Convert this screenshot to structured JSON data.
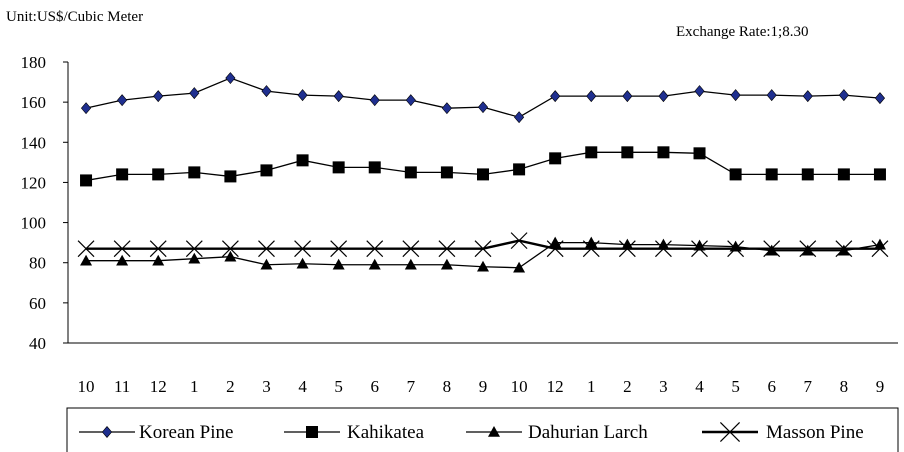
{
  "unit_label": "Unit:US$/Cubic Meter",
  "exchange_rate_label": "Exchange Rate:1;8.30",
  "chart_data": {
    "type": "line",
    "categories": [
      "10",
      "11",
      "12",
      "1",
      "2",
      "3",
      "4",
      "5",
      "6",
      "7",
      "8",
      "9",
      "10",
      "12",
      "1",
      "2",
      "3",
      "4",
      "5",
      "6",
      "7",
      "8",
      "9"
    ],
    "ylim": [
      40,
      180
    ],
    "yticks": [
      40,
      60,
      80,
      100,
      120,
      140,
      160,
      180
    ],
    "grid": false,
    "legend": "bottom",
    "series": [
      {
        "name": "Korean Pine",
        "marker": "diamond",
        "color": "#1f2f8f",
        "values": [
          157,
          161,
          163,
          164.5,
          172,
          165.5,
          163.5,
          163,
          161,
          161,
          157,
          157.5,
          152.5,
          163,
          163,
          163,
          163,
          165.5,
          163.5,
          163.5,
          163,
          163.5,
          162
        ]
      },
      {
        "name": "Kahikatea",
        "marker": "square",
        "color": "#000000",
        "values": [
          121,
          124,
          124,
          125,
          123,
          126,
          131,
          127.5,
          127.5,
          125,
          125,
          124,
          126.5,
          132,
          135,
          135,
          135,
          134.5,
          124,
          124,
          124,
          124,
          124
        ]
      },
      {
        "name": "Dahurian Larch",
        "marker": "triangle",
        "color": "#000000",
        "values": [
          81,
          81,
          81,
          82,
          83,
          79,
          79.5,
          79,
          79,
          79,
          79,
          78,
          77.5,
          90,
          90,
          89,
          89,
          88.5,
          88,
          86,
          86,
          86,
          89
        ]
      },
      {
        "name": "Masson Pine",
        "marker": "x",
        "color": "#000000",
        "values": [
          87,
          87,
          87,
          87,
          87,
          87,
          87,
          87,
          87,
          87,
          87,
          87,
          91,
          87,
          87,
          87,
          87,
          87,
          87,
          87,
          87,
          87,
          87
        ]
      }
    ]
  }
}
